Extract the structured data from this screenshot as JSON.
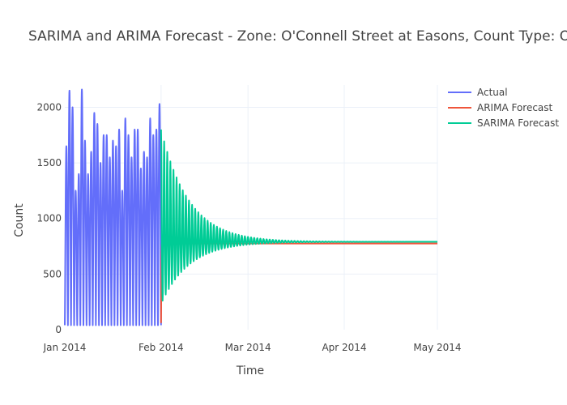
{
  "chart_data": {
    "type": "line",
    "title": "SARIMA and ARIMA Forecast - Zone: O'Connell Street at Easons, Count Type: OutCount",
    "xlabel": "Time",
    "ylabel": "Count",
    "x_axis": {
      "type": "date",
      "range": [
        "2014-01-01",
        "2014-05-01"
      ],
      "ticks": [
        {
          "date": "2014-01-01",
          "label": "Jan 2014"
        },
        {
          "date": "2014-02-01",
          "label": "Feb 2014"
        },
        {
          "date": "2014-03-01",
          "label": "Mar 2014"
        },
        {
          "date": "2014-04-01",
          "label": "Apr 2014"
        },
        {
          "date": "2014-05-01",
          "label": "May 2014"
        }
      ]
    },
    "y_axis": {
      "range": [
        0,
        2200
      ],
      "ticks": [
        0,
        500,
        1000,
        1500,
        2000
      ]
    },
    "grid": true,
    "legend": {
      "placement": "top-right"
    },
    "series": [
      {
        "name": "Actual",
        "color": "#636efa",
        "start": "2014-01-01",
        "end": "2014-01-31",
        "resolution": "hourly",
        "pattern": "daily cycle, minimum about 30-60, peaks about 1500-2150",
        "daily_peaks": [
          1650,
          2150,
          2000,
          1250,
          1400,
          2160,
          1700,
          1400,
          1600,
          1950,
          1850,
          1500,
          1750,
          1750,
          1550,
          1700,
          1650,
          1800,
          1250,
          1900,
          1750,
          1550,
          1800,
          1800,
          1450,
          1600,
          1550,
          1900,
          1750,
          1800,
          2030
        ],
        "daily_min": 40
      },
      {
        "name": "ARIMA Forecast",
        "color": "#ef553b",
        "start": "2014-02-01",
        "end": "2014-05-01",
        "values_start": [
          60,
          200,
          460,
          600,
          700,
          740,
          760
        ],
        "steady_value": 775
      },
      {
        "name": "SARIMA Forecast",
        "color": "#00cc96",
        "start": "2014-02-01",
        "end": "2014-05-01",
        "pattern": "damped daily oscillation around 790",
        "initial_high": 1800,
        "initial_low": 230,
        "steady_value": 790,
        "settles_by": "2014-03-10"
      }
    ]
  }
}
